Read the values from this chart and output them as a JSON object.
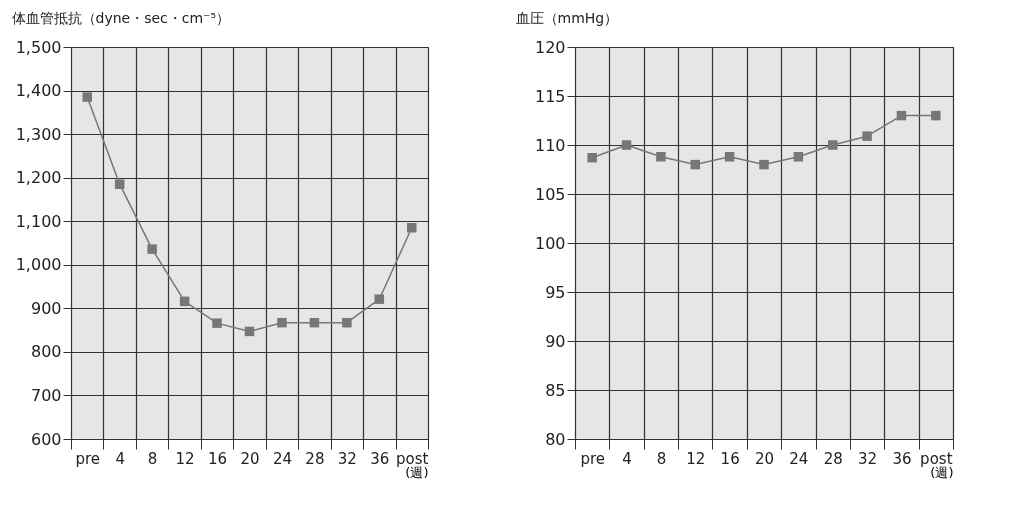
{
  "chart_data": [
    {
      "type": "line",
      "ylabel": "体血管抵抗（dyne・sec・cm⁻⁵）",
      "xlabel": "(週)",
      "categories": [
        "pre",
        "4",
        "8",
        "12",
        "16",
        "20",
        "24",
        "28",
        "32",
        "36",
        "post"
      ],
      "series": [
        {
          "color": "#777777",
          "values": [
            1385,
            1185,
            1036,
            916,
            866,
            847,
            867,
            867,
            867,
            921,
            1085
          ]
        }
      ],
      "ylim": [
        600,
        1500
      ],
      "yticks": [
        600,
        {
          "value": 700,
          "label": "700"
        },
        {
          "value": 800,
          "label": "800"
        },
        {
          "value": 900,
          "label": "900"
        },
        {
          "value": 1000,
          "label": "1,000"
        },
        {
          "value": 1100,
          "label": "1,100"
        },
        {
          "value": 1200,
          "label": "1,200"
        },
        {
          "value": 1300,
          "label": "1,300"
        },
        {
          "value": 1400,
          "label": "1,400"
        },
        {
          "value": 1500,
          "label": "1,500"
        }
      ],
      "grid": true,
      "marker": "square",
      "line_style": "solid"
    },
    {
      "type": "line",
      "ylabel": "血圧（mmHg）",
      "xlabel": "(週)",
      "categories": [
        "pre",
        "4",
        "8",
        "12",
        "16",
        "20",
        "24",
        "28",
        "32",
        "36",
        "post"
      ],
      "series": [
        {
          "color": "#777777",
          "values": [
            108.7,
            110,
            108.8,
            108,
            108.8,
            108,
            108.8,
            110,
            110.9,
            113,
            113
          ]
        }
      ],
      "ylim": [
        80,
        120
      ],
      "yticks": [
        80,
        85,
        90,
        95,
        100,
        105,
        110,
        115,
        120
      ],
      "grid": true,
      "marker": "square",
      "line_style": "solid"
    }
  ]
}
